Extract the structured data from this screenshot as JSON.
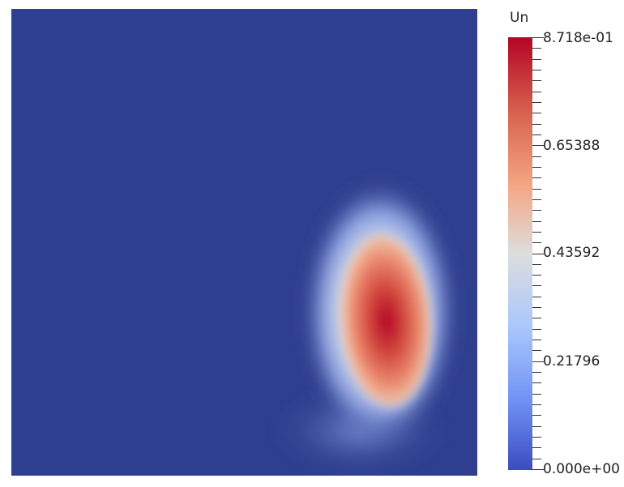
{
  "scalar_bar": {
    "title": "Un",
    "labels": [
      "8.718e-01",
      "0.65388",
      "0.43592",
      "0.21796",
      "0.000e+00"
    ],
    "range": [
      0.0,
      0.8718
    ],
    "colormap": [
      "#b40426",
      "#d6604d",
      "#f4a582",
      "#dddddd",
      "#aac7fd",
      "#6f92f3",
      "#3b4cc0"
    ]
  },
  "field": {
    "background_color": "#2f3f8f",
    "peak_color": "#b40426"
  }
}
